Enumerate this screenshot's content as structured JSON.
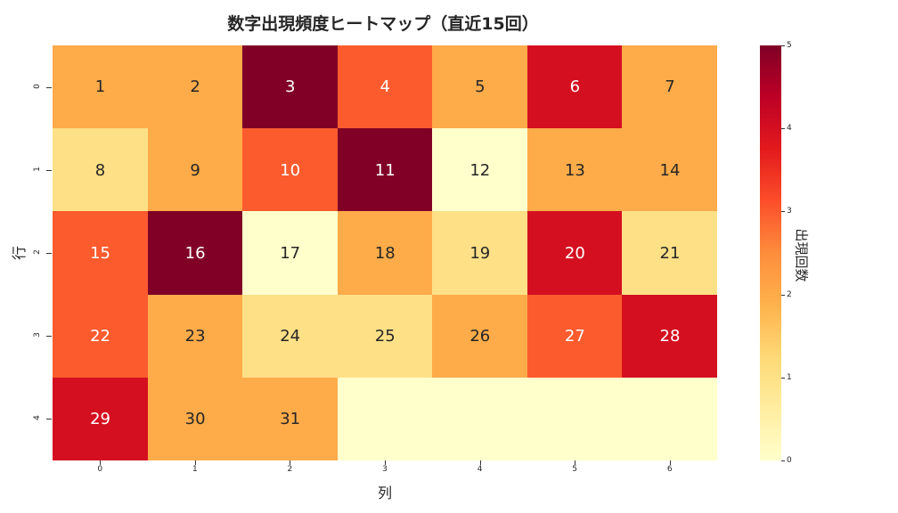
{
  "chart_data": {
    "type": "heatmap",
    "title": "数字出現頻度ヒートマップ（直近15回）",
    "xlabel": "列",
    "ylabel": "行",
    "x_ticks": [
      "0",
      "1",
      "2",
      "3",
      "4",
      "5",
      "6"
    ],
    "y_ticks": [
      "0",
      "1",
      "2",
      "3",
      "4"
    ],
    "values": [
      [
        2,
        2,
        5,
        3,
        2,
        4,
        2
      ],
      [
        1,
        2,
        3,
        5,
        0,
        2,
        2
      ],
      [
        3,
        5,
        0,
        2,
        1,
        4,
        1
      ],
      [
        3,
        2,
        1,
        1,
        2,
        3,
        4
      ],
      [
        4,
        2,
        2,
        0,
        0,
        0,
        0
      ]
    ],
    "annotations": [
      [
        "1",
        "2",
        "3",
        "4",
        "5",
        "6",
        "7"
      ],
      [
        "8",
        "9",
        "10",
        "11",
        "12",
        "13",
        "14"
      ],
      [
        "15",
        "16",
        "17",
        "18",
        "19",
        "20",
        "21"
      ],
      [
        "22",
        "23",
        "24",
        "25",
        "26",
        "27",
        "28"
      ],
      [
        "29",
        "30",
        "31",
        "",
        "",
        "",
        ""
      ]
    ],
    "colormap": "YlOrRd",
    "colorbar": {
      "label": "出現回数",
      "range": [
        0,
        5
      ],
      "ticks": [
        "0",
        "1",
        "2",
        "3",
        "4",
        "5"
      ]
    },
    "palette": [
      "#ffffcc",
      "#fee087",
      "#feab49",
      "#fc5b2e",
      "#d41020",
      "#800026"
    ]
  }
}
